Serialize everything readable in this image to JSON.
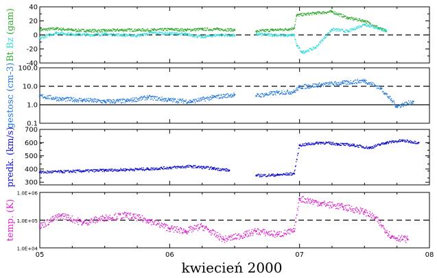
{
  "chart_data": {
    "type": "scatter",
    "xlabel": "kwiecień 2000",
    "x_ticks": [
      "05",
      "06",
      "07",
      "08"
    ],
    "xlim": [
      "2000-04-05",
      "2000-04-08"
    ],
    "colors": {
      "bt": "#33aa33",
      "bz": "#33dddd",
      "density": "#2277dd",
      "speed": "#1111cc",
      "temperature": "#dd22cc"
    },
    "panels": [
      {
        "id": "field",
        "ylabel_parts": [
          {
            "text": "Bt",
            "color": "#33aa33"
          },
          {
            "text": "Bz",
            "color": "#33dddd"
          },
          {
            "text": "(gam)",
            "color": "#33aa33"
          }
        ],
        "ylim": [
          -40,
          40
        ],
        "yticks": [
          "40",
          "20",
          "0",
          "-20",
          "-40"
        ],
        "reference_lines": [
          {
            "y": 0,
            "style": "dashed"
          }
        ],
        "series": [
          {
            "key": "bt",
            "x": [
              "2000-04-05T00:00",
              "2000-04-05T03:00",
              "2000-04-05T06:00",
              "2000-04-05T09:00",
              "2000-04-05T12:00",
              "2000-04-05T15:00",
              "2000-04-05T18:00",
              "2000-04-05T21:00",
              "2000-04-06T00:00",
              "2000-04-06T03:00",
              "2000-04-06T06:00",
              "2000-04-06T09:00",
              "2000-04-06T12:00",
              "2000-04-06T15:00",
              "2000-04-06T16:00",
              "2000-04-06T19:00",
              "2000-04-06T22:00",
              "2000-04-06T23:00",
              "2000-04-06T23:30",
              "2000-04-07T03:00",
              "2000-04-07T06:00",
              "2000-04-07T09:00",
              "2000-04-07T12:00",
              "2000-04-07T16:00"
            ],
            "y": [
              7,
              9,
              7,
              6,
              6,
              7,
              7,
              7,
              8,
              7,
              8,
              8,
              7,
              null,
              5,
              7,
              8,
              10,
              28,
              31,
              33,
              24,
              20,
              5
            ]
          },
          {
            "key": "bz",
            "x": [
              "2000-04-05T00:00",
              "2000-04-05T03:00",
              "2000-04-05T06:00",
              "2000-04-05T09:00",
              "2000-04-05T12:00",
              "2000-04-05T15:00",
              "2000-04-05T18:00",
              "2000-04-05T21:00",
              "2000-04-06T00:00",
              "2000-04-06T03:00",
              "2000-04-06T06:00",
              "2000-04-06T09:00",
              "2000-04-06T12:00",
              "2000-04-06T15:00",
              "2000-04-06T16:00",
              "2000-04-06T19:00",
              "2000-04-06T22:00",
              "2000-04-06T23:00",
              "2000-04-06T23:30",
              "2000-04-07T00:30",
              "2000-04-07T03:00",
              "2000-04-07T06:00",
              "2000-04-07T09:00",
              "2000-04-07T12:00",
              "2000-04-07T16:00"
            ],
            "y": [
              -5,
              3,
              1,
              0,
              1,
              0,
              -1,
              3,
              2,
              1,
              -3,
              0,
              -1,
              null,
              1,
              0,
              -1,
              0,
              -15,
              -25,
              -18,
              8,
              5,
              15,
              6
            ]
          }
        ]
      },
      {
        "id": "density",
        "ylabel_parts": [
          {
            "text": "gestosc (cm-3)",
            "color": "#2277dd"
          }
        ],
        "ylim": [
          0.1,
          100
        ],
        "scale": "log",
        "yticks": [
          "100.0",
          "10.0",
          "1.0",
          "0.1"
        ],
        "reference_lines": [
          {
            "y": 10,
            "style": "dashed"
          },
          {
            "y": 1,
            "style": "solid"
          }
        ],
        "series": [
          {
            "key": "density",
            "x": [
              "2000-04-05T00:00",
              "2000-04-05T04:00",
              "2000-04-05T08:00",
              "2000-04-05T12:00",
              "2000-04-05T16:00",
              "2000-04-05T20:00",
              "2000-04-06T00:00",
              "2000-04-06T04:00",
              "2000-04-06T08:00",
              "2000-04-06T12:00",
              "2000-04-06T15:00",
              "2000-04-06T16:00",
              "2000-04-06T20:00",
              "2000-04-06T23:00",
              "2000-04-07T00:00",
              "2000-04-07T04:00",
              "2000-04-07T08:00",
              "2000-04-07T12:00",
              "2000-04-07T15:00",
              "2000-04-07T18:00",
              "2000-04-07T21:00"
            ],
            "y": [
              3,
              2,
              1.8,
              1.5,
              1.6,
              2.5,
              1.8,
              1.5,
              2.5,
              3.5,
              null,
              3,
              4.5,
              5,
              9,
              12,
              15,
              20,
              8,
              0.8,
              1.5
            ]
          }
        ]
      },
      {
        "id": "speed",
        "ylabel_parts": [
          {
            "text": "predk. (km/s)",
            "color": "#1111cc"
          }
        ],
        "ylim": [
          280,
          700
        ],
        "yticks": [
          "700",
          "600",
          "500",
          "400",
          "300"
        ],
        "reference_lines": [],
        "series": [
          {
            "key": "speed",
            "x": [
              "2000-04-05T00:00",
              "2000-04-05T04:00",
              "2000-04-05T08:00",
              "2000-04-05T12:00",
              "2000-04-05T16:00",
              "2000-04-05T20:00",
              "2000-04-06T00:00",
              "2000-04-06T04:00",
              "2000-04-06T08:00",
              "2000-04-06T11:00",
              "2000-04-06T15:00",
              "2000-04-06T16:00",
              "2000-04-06T20:00",
              "2000-04-06T23:00",
              "2000-04-07T00:00",
              "2000-04-07T04:00",
              "2000-04-07T07:00",
              "2000-04-07T10:00",
              "2000-04-07T13:00",
              "2000-04-07T16:00",
              "2000-04-07T19:00",
              "2000-04-07T22:00"
            ],
            "y": [
              375,
              380,
              385,
              390,
              395,
              400,
              410,
              420,
              405,
              390,
              null,
              350,
              355,
              365,
              580,
              600,
              590,
              580,
              560,
              600,
              615,
              600
            ]
          }
        ]
      },
      {
        "id": "temperature",
        "ylabel_parts": [
          {
            "text": "temp. (K)",
            "color": "#dd22cc"
          }
        ],
        "ylim": [
          10000,
          1000000
        ],
        "scale": "log",
        "yticks": [
          "1.0E+06",
          "1.0E+05",
          "1.0E+04"
        ],
        "reference_lines": [
          {
            "y": 100000,
            "style": "dashed"
          }
        ],
        "series": [
          {
            "key": "temperature",
            "x": [
              "2000-04-05T00:00",
              "2000-04-05T04:00",
              "2000-04-05T08:00",
              "2000-04-05T12:00",
              "2000-04-05T16:00",
              "2000-04-05T20:00",
              "2000-04-06T00:00",
              "2000-04-06T03:00",
              "2000-04-06T06:00",
              "2000-04-06T10:00",
              "2000-04-06T14:00",
              "2000-04-06T16:00",
              "2000-04-06T20:00",
              "2000-04-06T23:00",
              "2000-04-07T00:00",
              "2000-04-07T04:00",
              "2000-04-07T08:00",
              "2000-04-07T12:00",
              "2000-04-07T14:00",
              "2000-04-07T17:00",
              "2000-04-07T20:00"
            ],
            "y": [
              60000,
              150000,
              80000,
              120000,
              150000,
              100000,
              50000,
              40000,
              60000,
              20000,
              30000,
              40000,
              30000,
              40000,
              600000,
              400000,
              300000,
              200000,
              120000,
              25000,
              20000
            ]
          }
        ]
      }
    ]
  }
}
